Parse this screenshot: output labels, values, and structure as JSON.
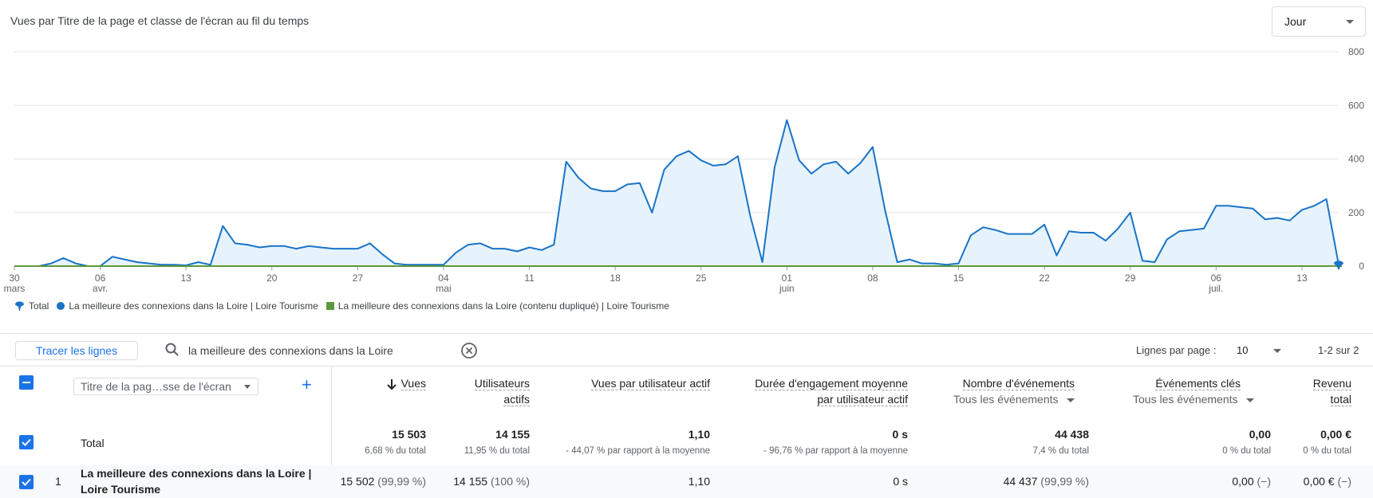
{
  "header": {
    "title": "Vues par Titre de la page et classe de l'écran au fil du temps",
    "granularity": "Jour"
  },
  "chart_data": {
    "type": "area",
    "x": [
      "2024-03-30",
      "2024-03-31",
      "2024-04-01",
      "2024-04-02",
      "2024-04-03",
      "2024-04-04",
      "2024-04-05",
      "2024-04-06",
      "2024-04-07",
      "2024-04-08",
      "2024-04-09",
      "2024-04-10",
      "2024-04-11",
      "2024-04-12",
      "2024-04-13",
      "2024-04-14",
      "2024-04-15",
      "2024-04-16",
      "2024-04-17",
      "2024-04-18",
      "2024-04-19",
      "2024-04-20",
      "2024-04-21",
      "2024-04-22",
      "2024-04-23",
      "2024-04-24",
      "2024-04-25",
      "2024-04-26",
      "2024-04-27",
      "2024-04-28",
      "2024-04-29",
      "2024-04-30",
      "2024-05-01",
      "2024-05-02",
      "2024-05-03",
      "2024-05-04",
      "2024-05-05",
      "2024-05-06",
      "2024-05-07",
      "2024-05-08",
      "2024-05-09",
      "2024-05-10",
      "2024-05-11",
      "2024-05-12",
      "2024-05-13",
      "2024-05-14",
      "2024-05-15",
      "2024-05-16",
      "2024-05-17",
      "2024-05-18",
      "2024-05-19",
      "2024-05-20",
      "2024-05-21",
      "2024-05-22",
      "2024-05-23",
      "2024-05-24",
      "2024-05-25",
      "2024-05-26",
      "2024-05-27",
      "2024-05-28",
      "2024-05-29",
      "2024-05-30",
      "2024-05-31",
      "2024-06-01",
      "2024-06-02",
      "2024-06-03",
      "2024-06-04",
      "2024-06-05",
      "2024-06-06",
      "2024-06-07",
      "2024-06-08",
      "2024-06-09",
      "2024-06-10",
      "2024-06-11",
      "2024-06-12",
      "2024-06-13",
      "2024-06-14",
      "2024-06-15",
      "2024-06-16",
      "2024-06-17",
      "2024-06-18",
      "2024-06-19",
      "2024-06-20",
      "2024-06-21",
      "2024-06-22",
      "2024-06-23",
      "2024-06-24",
      "2024-06-25",
      "2024-06-26",
      "2024-06-27",
      "2024-06-28",
      "2024-06-29",
      "2024-06-30",
      "2024-07-01",
      "2024-07-02",
      "2024-07-03",
      "2024-07-04",
      "2024-07-05",
      "2024-07-06",
      "2024-07-07",
      "2024-07-08",
      "2024-07-09",
      "2024-07-10",
      "2024-07-11",
      "2024-07-12",
      "2024-07-13",
      "2024-07-14",
      "2024-07-15",
      "2024-07-16"
    ],
    "series": [
      {
        "name": "La meilleure des connexions dans la Loire | Loire Tourisme",
        "color": "#1a73c6",
        "values": [
          0,
          0,
          0,
          10,
          30,
          10,
          0,
          0,
          35,
          25,
          15,
          10,
          5,
          5,
          3,
          15,
          5,
          150,
          85,
          80,
          70,
          75,
          75,
          65,
          75,
          70,
          65,
          65,
          65,
          85,
          45,
          10,
          5,
          5,
          5,
          5,
          50,
          80,
          85,
          65,
          65,
          55,
          70,
          60,
          80,
          390,
          330,
          290,
          280,
          280,
          305,
          310,
          200,
          360,
          410,
          430,
          395,
          375,
          380,
          410,
          190,
          15,
          370,
          545,
          395,
          345,
          380,
          390,
          345,
          385,
          445,
          210,
          15,
          25,
          10,
          10,
          5,
          10,
          115,
          145,
          135,
          120,
          120,
          120,
          155,
          40,
          130,
          125,
          125,
          95,
          140,
          200,
          20,
          15,
          100,
          130,
          135,
          140,
          225,
          225,
          220,
          215,
          175,
          180,
          170,
          210,
          225,
          250,
          5
        ]
      },
      {
        "name": "La meilleure des connexions dans la Loire (contenu dupliqué) | Loire Tourisme",
        "color": "#5b9a3a",
        "values": [
          0,
          0,
          0,
          0,
          0,
          0,
          0,
          0,
          0,
          0,
          0,
          0,
          0,
          0,
          0,
          0,
          0,
          0,
          0,
          0,
          0,
          0,
          0,
          0,
          0,
          0,
          0,
          0,
          0,
          0,
          0,
          0,
          0,
          0,
          0,
          0,
          0,
          0,
          0,
          0,
          0,
          0,
          0,
          0,
          0,
          0,
          0,
          0,
          0,
          0,
          0,
          0,
          0,
          0,
          0,
          0,
          0,
          0,
          0,
          0,
          0,
          0,
          0,
          0,
          0,
          0,
          0,
          0,
          0,
          0,
          0,
          0,
          0,
          0,
          0,
          0,
          0,
          0,
          0,
          0,
          0,
          0,
          0,
          0,
          0,
          0,
          0,
          0,
          0,
          0,
          0,
          0,
          0,
          0,
          0,
          0,
          0,
          0,
          0,
          0,
          0,
          0,
          0,
          0,
          0,
          0,
          0,
          0,
          1
        ]
      }
    ],
    "total_label": "Total",
    "ylim": [
      0,
      800
    ],
    "yticks": [
      "800",
      "600",
      "400",
      "200",
      "0"
    ],
    "xticks": [
      {
        "label": "30",
        "sub": "mars"
      },
      {
        "label": "06",
        "sub": "avr."
      },
      {
        "label": "13",
        "sub": ""
      },
      {
        "label": "20",
        "sub": ""
      },
      {
        "label": "27",
        "sub": ""
      },
      {
        "label": "04",
        "sub": "mai"
      },
      {
        "label": "11",
        "sub": ""
      },
      {
        "label": "18",
        "sub": ""
      },
      {
        "label": "25",
        "sub": ""
      },
      {
        "label": "01",
        "sub": "juin"
      },
      {
        "label": "08",
        "sub": ""
      },
      {
        "label": "15",
        "sub": ""
      },
      {
        "label": "22",
        "sub": ""
      },
      {
        "label": "29",
        "sub": ""
      },
      {
        "label": "06",
        "sub": "juil."
      },
      {
        "label": "13",
        "sub": ""
      }
    ],
    "grid": true,
    "legend_position": "bottom-left"
  },
  "toolbar": {
    "trace_button": "Tracer les lignes",
    "search_value": "la meilleure des connexions dans la Loire",
    "rows_per_page_label": "Lignes par page :",
    "rows_per_page_value": "10",
    "pagination": "1-2 sur 2"
  },
  "table": {
    "dimension_select": "Titre de la pag…sse de l'écran",
    "columns": {
      "vues": "Vues",
      "users_l1": "Utilisateurs",
      "users_l2": "actifs",
      "vpu": "Vues par utilisateur actif",
      "eng_l1": "Durée d'engagement moyenne",
      "eng_l2": "par utilisateur actif",
      "events": "Nombre d'événements",
      "events_filter": "Tous les événements",
      "key_events": "Événements clés",
      "key_events_filter": "Tous les événements",
      "revenue_l1": "Revenu",
      "revenue_l2": "total"
    },
    "total": {
      "label": "Total",
      "vues": "15 503",
      "vues_sub": "6,68 % du total",
      "users": "14 155",
      "users_sub": "11,95 % du total",
      "vpu": "1,10",
      "vpu_sub": "- 44,07 % par rapport à la moyenne",
      "eng": "0 s",
      "eng_sub": "- 96,76 % par rapport à la moyenne",
      "events": "44 438",
      "events_sub": "7,4 % du total",
      "key_events": "0,00",
      "key_events_sub": "0 % du total",
      "revenue": "0,00 €",
      "revenue_sub": "0 % du total"
    },
    "rows": [
      {
        "index": "1",
        "name_l1": "La meilleure des connexions dans la Loire |",
        "name_l2": "Loire Tourisme",
        "vues": "15 502",
        "vues_pct": "(99,99 %)",
        "users": "14 155",
        "users_pct": "(100 %)",
        "vpu": "1,10",
        "eng": "0 s",
        "events": "44 437",
        "events_pct": "(99,99 %)",
        "key_events": "0,00",
        "key_events_pct": "(−)",
        "revenue": "0,00 €",
        "revenue_pct": "(−)"
      }
    ]
  }
}
